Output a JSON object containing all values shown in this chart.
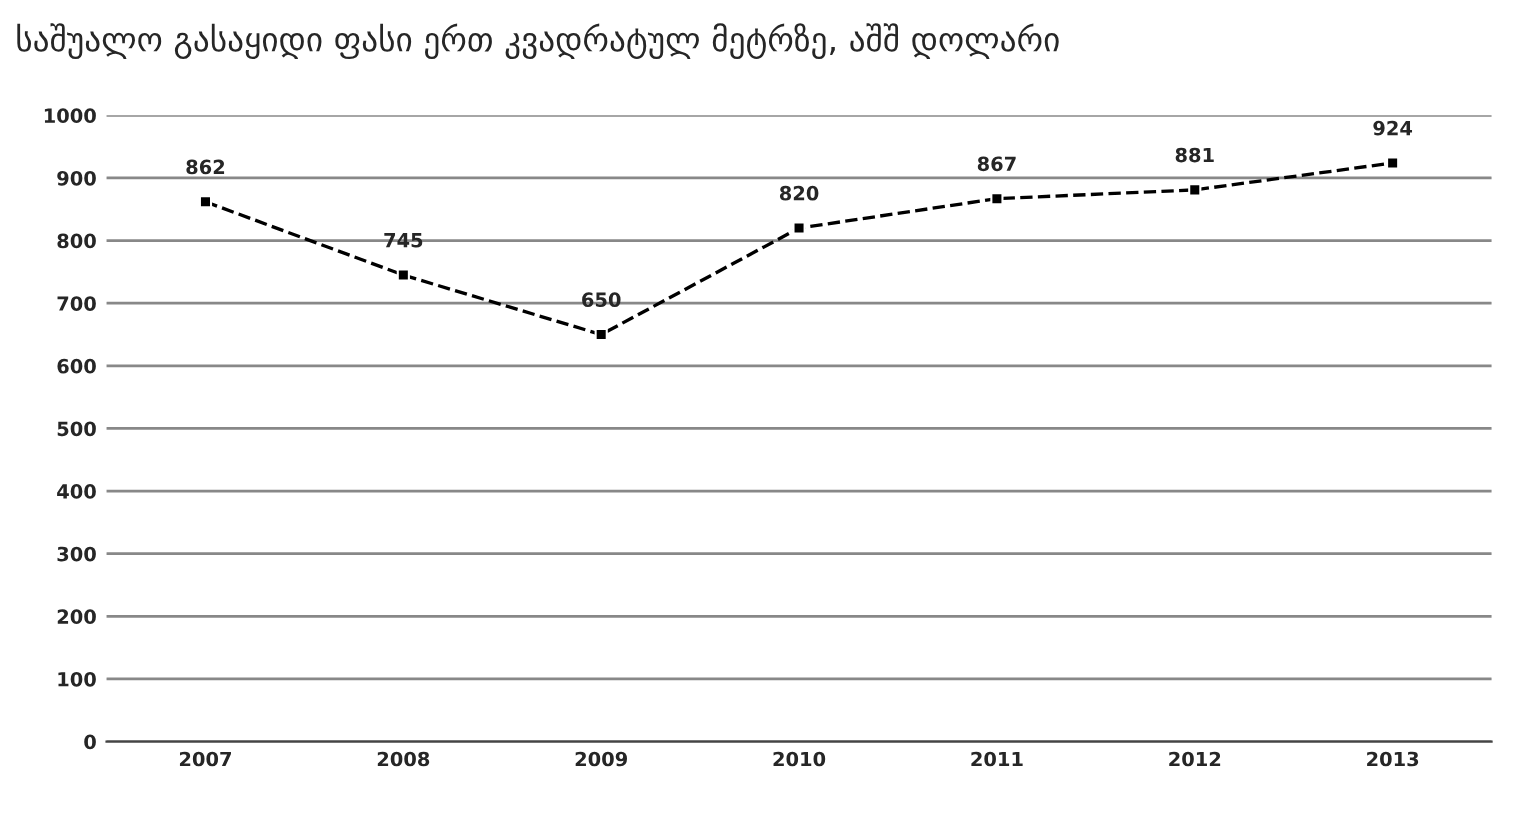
{
  "chart_data": {
    "type": "line",
    "title": "საშუალო გასაყიდი ფასი ერთ კვადრატულ მეტრზე, აშშ დოლარი",
    "categories": [
      "2007",
      "2008",
      "2009",
      "2010",
      "2011",
      "2012",
      "2013"
    ],
    "series": [
      {
        "color": "#000000",
        "values": [
          862,
          745,
          650,
          820,
          867,
          881,
          924
        ]
      }
    ],
    "ylim": [
      0,
      1000
    ],
    "yticks": [
      0,
      100,
      200,
      300,
      400,
      500,
      600,
      700,
      800,
      900,
      1000
    ],
    "grid": "y",
    "legend": false,
    "marker": "square",
    "line_style": "dashed",
    "data_labels": true
  }
}
